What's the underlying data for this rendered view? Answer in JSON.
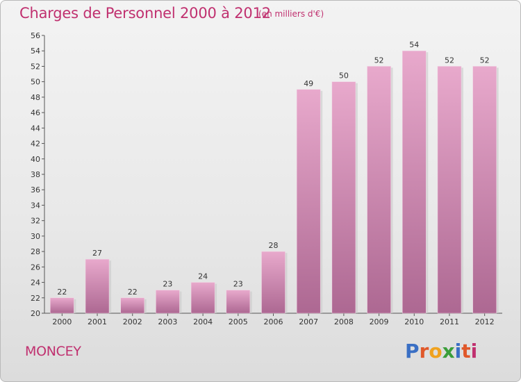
{
  "chart_data": {
    "type": "bar",
    "title": "Charges de Personnel 2000 à 2012",
    "subtitle": "(en milliers d'€)",
    "categories": [
      "2000",
      "2001",
      "2002",
      "2003",
      "2004",
      "2005",
      "2006",
      "2007",
      "2008",
      "2009",
      "2010",
      "2011",
      "2012"
    ],
    "values": [
      22,
      27,
      22,
      23,
      24,
      23,
      28,
      49,
      50,
      52,
      54,
      52,
      52
    ],
    "ylim": [
      20,
      56
    ],
    "yticks": [
      20,
      22,
      24,
      26,
      28,
      30,
      32,
      34,
      36,
      38,
      40,
      42,
      44,
      46,
      48,
      50,
      52,
      54,
      56
    ],
    "grid": false,
    "bar_color": "#d88fb6",
    "bar_color_dark": "#b06a92"
  },
  "footer": {
    "town": "MONCEY",
    "logo": "Proxiti"
  },
  "colors": {
    "accent": "#c0306f",
    "logo_letters": [
      "#3a6fc4",
      "#e0582a",
      "#f0a21e",
      "#3a9e3a",
      "#3a6fc4",
      "#e0582a",
      "#c0306f"
    ]
  }
}
